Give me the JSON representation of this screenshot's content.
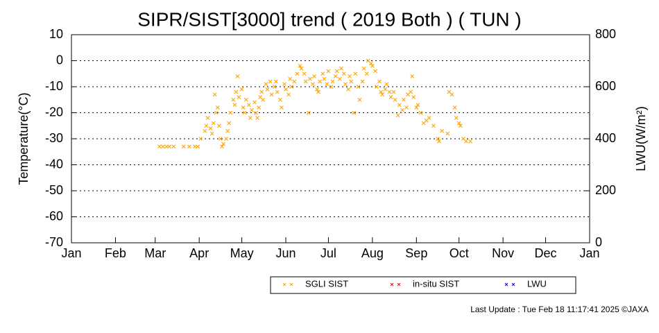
{
  "chart_data": {
    "type": "scatter",
    "title": "SIPR/SIST[3000] trend ( 2019 Both ) ( TUN )",
    "y_label": "Temperature(°C)",
    "y2_label": "LWU(W/m²)",
    "footer": "Last Update : Tue Feb 18 11:17:41 2025 ©JAXA",
    "xlim": [
      0,
      365
    ],
    "xticks": [
      {
        "value": 0,
        "label": "Jan"
      },
      {
        "value": 31,
        "label": "Feb"
      },
      {
        "value": 59,
        "label": "Mar"
      },
      {
        "value": 90,
        "label": "Apr"
      },
      {
        "value": 120,
        "label": "May"
      },
      {
        "value": 151,
        "label": "Jun"
      },
      {
        "value": 181,
        "label": "Jul"
      },
      {
        "value": 212,
        "label": "Aug"
      },
      {
        "value": 243,
        "label": "Sep"
      },
      {
        "value": 273,
        "label": "Oct"
      },
      {
        "value": 304,
        "label": "Nov"
      },
      {
        "value": 334,
        "label": "Dec"
      },
      {
        "value": 365,
        "label": "Jan"
      }
    ],
    "ylim": [
      -70,
      10
    ],
    "yticks": [
      -70,
      -60,
      -50,
      -40,
      -30,
      -20,
      -10,
      0,
      10
    ],
    "y2lim": [
      0,
      800
    ],
    "y2ticks": [
      0,
      200,
      400,
      600,
      800
    ],
    "grid": true,
    "legend": "bottom",
    "series": [
      {
        "name": "SGLI SIST",
        "color": "#ffa500",
        "x": [
          62,
          64.5,
          67,
          69,
          72,
          79,
          83,
          87,
          89,
          91,
          94,
          95,
          96,
          98,
          99,
          100,
          101,
          102,
          103,
          104,
          105,
          106,
          107,
          109,
          110,
          111,
          112,
          114,
          115,
          116,
          117,
          118,
          120,
          121,
          122,
          123,
          125,
          126,
          127,
          129,
          130,
          131,
          132,
          133,
          134,
          135,
          137,
          138,
          140,
          141,
          143,
          144,
          145,
          147,
          148,
          150,
          151,
          153,
          154,
          155,
          157,
          159,
          161,
          162,
          164,
          165,
          167,
          168,
          170,
          171,
          173,
          174,
          175,
          177,
          178,
          180,
          181,
          183,
          184,
          186,
          187,
          189,
          190,
          192,
          193,
          195,
          196,
          197,
          199,
          200,
          202,
          203,
          205,
          206,
          208,
          209,
          211,
          212,
          214,
          215,
          217,
          218,
          219,
          221,
          222,
          224,
          225,
          227,
          228,
          230,
          231,
          233,
          234,
          236,
          237,
          239,
          240,
          241,
          243,
          244,
          246,
          248,
          250,
          252,
          255,
          258,
          259,
          261,
          265,
          266,
          268,
          270,
          271,
          273,
          274,
          276,
          278,
          281
        ],
        "values": [
          -33,
          -33,
          -33,
          -33,
          -33,
          -33,
          -33,
          -33,
          -33,
          -30,
          -27,
          -25,
          -22,
          -26,
          -28,
          -24,
          -13,
          -20,
          -18,
          -25,
          -30,
          -33,
          -32,
          -30,
          -27,
          -24,
          -20,
          -15,
          -17,
          -12,
          -6,
          -14,
          -11,
          -18,
          -20,
          -15,
          -17,
          -22,
          -19,
          -16,
          -20,
          -22,
          -18,
          -14,
          -12,
          -15,
          -9,
          -11,
          -8,
          -13,
          -10,
          -8,
          -12,
          -15,
          -18,
          -9,
          -11,
          -13,
          -7,
          -10,
          -8,
          -5,
          -2,
          -3,
          -5,
          -8,
          -20,
          -7,
          -9,
          -6,
          -11,
          -12,
          -8,
          -5,
          -7,
          -9,
          -4,
          -10,
          -8,
          -6,
          -4,
          -7,
          -3,
          -5,
          -9,
          -11,
          -6,
          -8,
          -20,
          -5,
          -10,
          -15,
          -8,
          -3,
          -5,
          0,
          -1,
          -2,
          -4,
          -10,
          -8,
          -12,
          -13,
          -11,
          -9,
          -12,
          -14,
          -12,
          -15,
          -21,
          -17,
          -19,
          -15,
          -18,
          -13,
          -12,
          -6,
          -14,
          -18,
          -17,
          -20,
          -24,
          -23,
          -22,
          -25,
          -30,
          -31,
          -27,
          -28,
          -12,
          -13,
          -18,
          -22,
          -24,
          -25,
          -30,
          -31,
          -31
        ]
      },
      {
        "name": "in-situ SIST",
        "color": "#ff0000",
        "x": [],
        "values": []
      },
      {
        "name": "LWU",
        "color": "#0000ff",
        "axis": "y2",
        "x": [],
        "values": []
      }
    ]
  }
}
